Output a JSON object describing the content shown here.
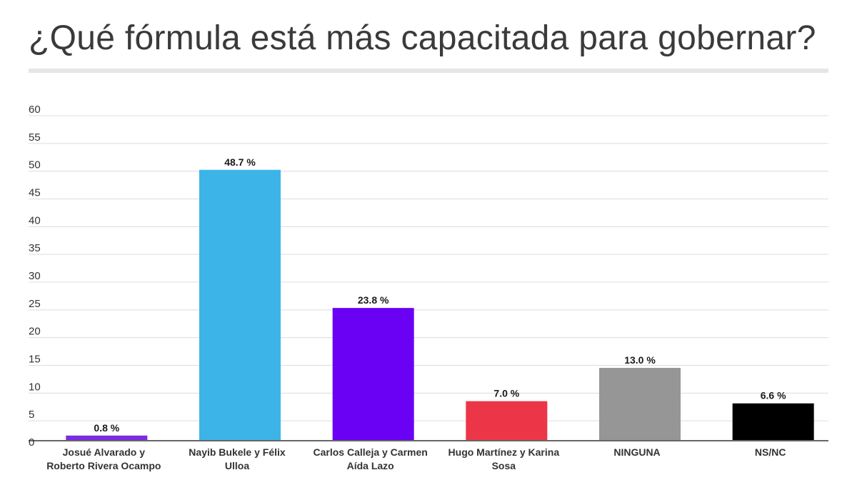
{
  "chart_data": {
    "type": "bar",
    "title": "¿Qué fórmula está más capacitada para gobernar?",
    "categories": [
      [
        "Josué Alvarado y",
        "Roberto Rivera Ocampo"
      ],
      [
        "Nayib Bukele y Félix",
        "Ulloa"
      ],
      [
        "Carlos Calleja y Carmen",
        "Aída Lazo"
      ],
      [
        "Hugo Martínez y Karina",
        "Sosa"
      ],
      [
        "NINGUNA"
      ],
      [
        "NS/NC"
      ]
    ],
    "values": [
      0.8,
      48.7,
      23.8,
      7.0,
      13.0,
      6.6
    ],
    "value_labels": [
      "0.8 %",
      "48.7 %",
      "23.8 %",
      "7.0 %",
      "13.0 %",
      "6.6 %"
    ],
    "colors": [
      "#7b2be0",
      "#3db4e8",
      "#6a00f4",
      "#ec3648",
      "#969696",
      "#000000"
    ],
    "ylim": [
      0,
      60
    ],
    "yticks": [
      0,
      5,
      10,
      15,
      20,
      25,
      30,
      35,
      40,
      45,
      50,
      55,
      60
    ],
    "grid": true,
    "legend": "none",
    "xlabel": "",
    "ylabel": ""
  }
}
